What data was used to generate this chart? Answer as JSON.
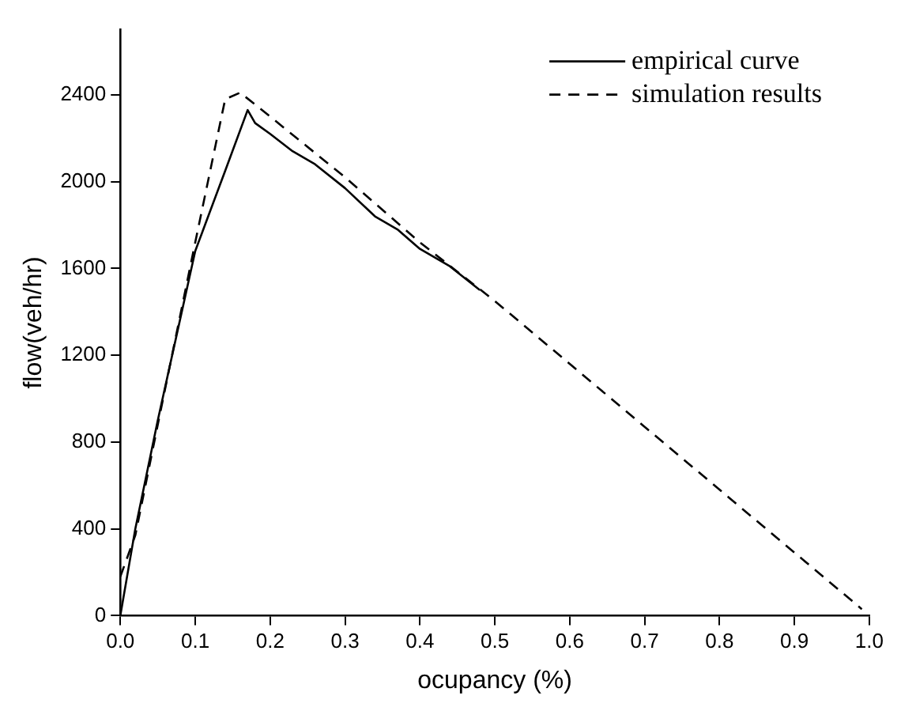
{
  "chart_data": {
    "type": "line",
    "xlabel": "ocupancy (%)",
    "ylabel": "flow(veh/hr)",
    "xlim": [
      0,
      1
    ],
    "xticks": [
      {
        "value": 0,
        "label": "0.0"
      },
      0.1,
      0.2,
      0.3,
      0.4,
      0.5,
      0.6,
      0.7,
      0.8,
      0.9,
      {
        "value": 1,
        "label": "1.0"
      }
    ],
    "ylim": [
      0,
      2700
    ],
    "yticks": [
      0,
      400,
      800,
      1200,
      1600,
      2000,
      2400
    ],
    "grid": false,
    "legend": "top right",
    "marker": "none",
    "series": [
      {
        "name": "empirical curve",
        "color": "#000000",
        "line_style": "solid",
        "x": [
          0,
          0.02,
          0.05,
          0.1,
          0.14,
          0.17,
          0.18,
          0.2,
          0.23,
          0.26,
          0.3,
          0.34,
          0.37,
          0.4,
          0.44,
          0.48
        ],
        "values": [
          0,
          400,
          900,
          1680,
          2050,
          2330,
          2270,
          2220,
          2140,
          2080,
          1970,
          1840,
          1780,
          1690,
          1610,
          1500
        ]
      },
      {
        "name": "simulation results",
        "color": "#000000",
        "line_style": "dashed",
        "x": [
          0,
          0.02,
          0.05,
          0.1,
          0.14,
          0.16,
          0.2,
          0.3,
          0.4,
          0.5,
          0.99
        ],
        "values": [
          180,
          370,
          880,
          1720,
          2380,
          2410,
          2300,
          2020,
          1720,
          1450,
          30
        ]
      }
    ]
  }
}
